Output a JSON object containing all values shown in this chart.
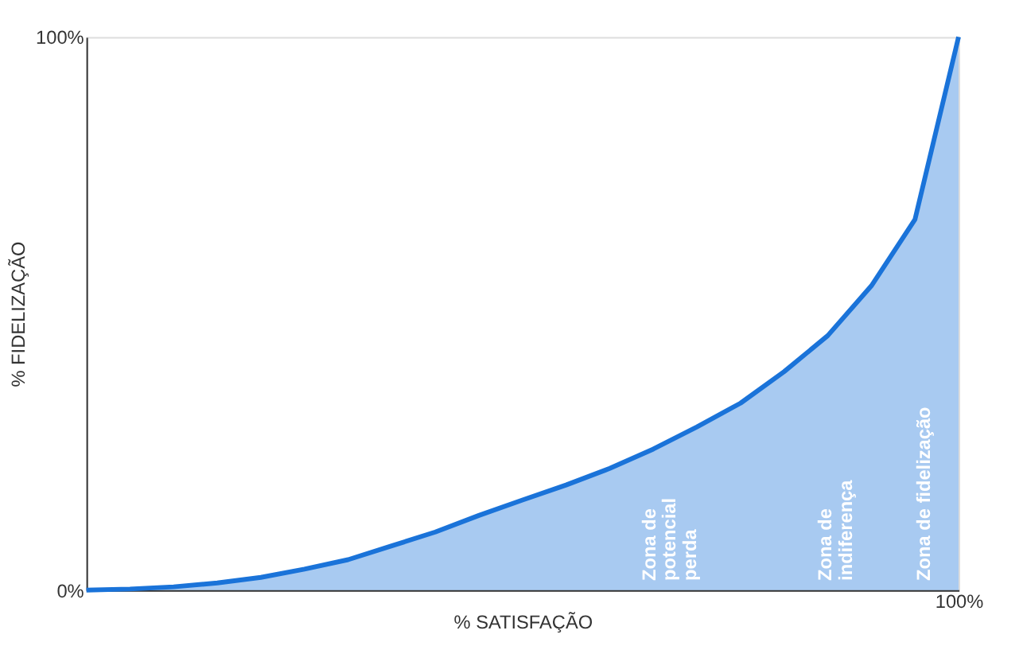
{
  "chart_data": {
    "type": "area",
    "xlabel": "% SATISFAÇÃO",
    "ylabel": "% FIDELIZAÇÃO",
    "categories": [
      null,
      null,
      null,
      null,
      null,
      null,
      null,
      null,
      null,
      null,
      null,
      null,
      null,
      null,
      null,
      null,
      null,
      null,
      null,
      null,
      "100%"
    ],
    "series": [
      {
        "color": "#1a73d9",
        "values": [
          0,
          0.2,
          0.6,
          1.3,
          2.3,
          3.8,
          5.5,
          8,
          10.5,
          13.5,
          16.3,
          19,
          22,
          25.5,
          29.5,
          33.8,
          39.5,
          46,
          55,
          67,
          100
        ]
      }
    ],
    "ylim": [
      0,
      100
    ],
    "yticks": [
      {
        "value": 0,
        "label": "0%"
      },
      {
        "value": 100,
        "label": "100%"
      }
    ],
    "annotations": [
      "Zona de\npotencial\nperda",
      "Zona de\nindiferença",
      "Zona de fidelização"
    ],
    "grid": false
  }
}
